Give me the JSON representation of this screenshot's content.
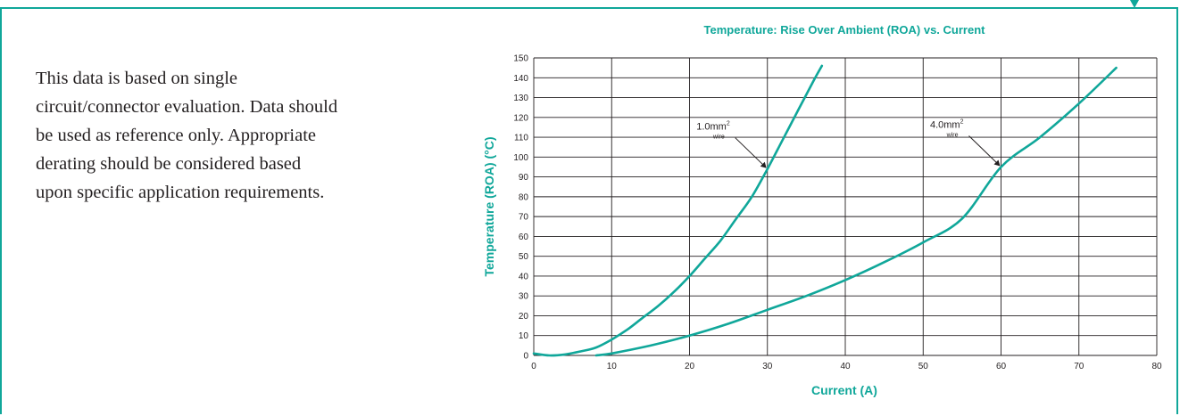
{
  "description": "This data is based on single circuit/connector evaluation. Data should be used as reference only. Appropriate derating should be considered based upon specific application requirements.",
  "chart_data": {
    "type": "line",
    "title": "Temperature: Rise Over Ambient (ROA) vs. Current",
    "xlabel": "Current (A)",
    "ylabel": "Temperature (ROA) (°C)",
    "xlim": [
      0,
      80
    ],
    "ylim": [
      0,
      150
    ],
    "xticks": [
      0,
      10,
      20,
      30,
      40,
      50,
      60,
      70,
      80
    ],
    "yticks": [
      0,
      10,
      20,
      30,
      40,
      50,
      60,
      70,
      80,
      90,
      100,
      110,
      120,
      130,
      140,
      150
    ],
    "grid": true,
    "color": "#10a79a",
    "series": [
      {
        "label": "1.0mm2 wire",
        "label_main": "1.0mm",
        "label_sup": "2",
        "label_sub": "wire",
        "annotation_at": [
          30,
          94
        ],
        "x": [
          0,
          2,
          4,
          6,
          8,
          10,
          12,
          14,
          16,
          18,
          20,
          22,
          24,
          26,
          28,
          30,
          32,
          34,
          36,
          37
        ],
        "y": [
          1,
          0,
          0.5,
          2,
          4,
          8,
          13,
          19,
          25,
          32,
          40,
          49,
          58,
          69,
          80,
          94,
          109,
          124,
          139,
          146
        ]
      },
      {
        "label": "4.0mm2 wire",
        "label_main": "4.0mm",
        "label_sup": "2",
        "label_sub": "wire",
        "annotation_at": [
          60,
          95
        ],
        "x": [
          8,
          10,
          15,
          20,
          25,
          30,
          35,
          40,
          45,
          50,
          55,
          60,
          65,
          70,
          74.8
        ],
        "y": [
          0,
          1,
          5,
          10,
          16,
          23,
          30,
          38,
          47,
          57,
          69,
          95,
          110,
          127,
          145
        ]
      }
    ]
  }
}
